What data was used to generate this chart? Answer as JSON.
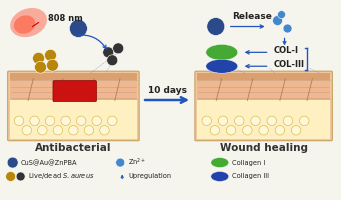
{
  "bg_color": "#f5f5ee",
  "left_label": "Antibacterial",
  "right_label": "Wound healing",
  "middle_label": "10 days",
  "laser_label": "808 nm",
  "release_label": "Release",
  "col1_label": "COL-I",
  "col3_label": "COL-III",
  "nano_color": "#2a4a8a",
  "dead_color": "#444444",
  "live_color": "#b8860b",
  "zn_color": "#4488cc",
  "col1_color": "#44aa33",
  "col3_color": "#2244aa",
  "arrow_color": "#2255bb",
  "skin_top_color": "#e8c090",
  "skin_mid_color": "#f0c8a0",
  "skin_low_color": "#f5e0b0",
  "skin_fat_color": "#fef0c0",
  "skin_fat_edge": "#d4b040",
  "wound_color": "#cc1111",
  "wound_edge": "#880000",
  "hair_color": "#a07050",
  "tissue_color": "#c09070"
}
